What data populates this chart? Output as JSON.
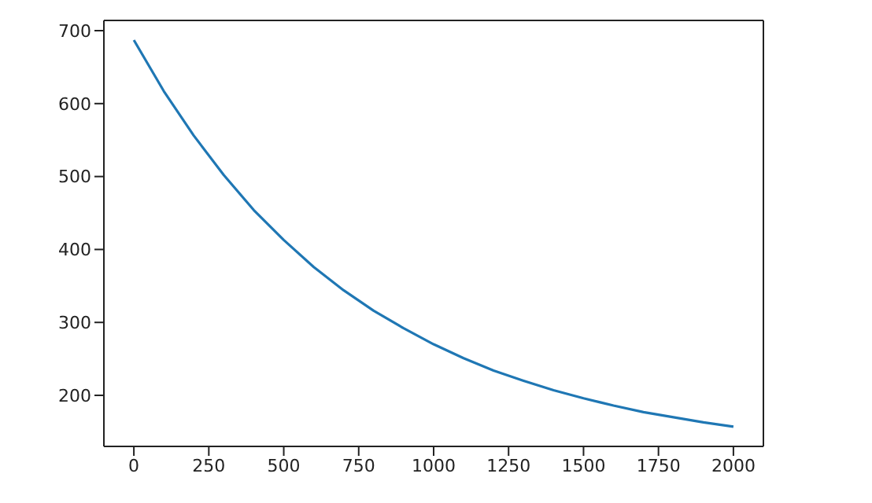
{
  "chart_data": {
    "type": "line",
    "x": [
      0,
      100,
      200,
      300,
      400,
      500,
      600,
      700,
      800,
      900,
      1000,
      1100,
      1200,
      1300,
      1400,
      1500,
      1600,
      1700,
      1800,
      1900,
      2000
    ],
    "series": [
      {
        "color": "#1f77b4",
        "values": [
          687,
          617,
          556,
          502,
          454,
          413,
          376,
          344,
          316,
          292,
          270,
          251,
          234,
          220,
          207,
          196,
          186,
          177,
          170,
          163,
          157
        ]
      }
    ],
    "xlim": [
      -100,
      2100
    ],
    "xticks": [
      0,
      250,
      500,
      750,
      1000,
      1250,
      1500,
      1750,
      2000
    ],
    "ylim": [
      130,
      714
    ],
    "yticks": [
      200,
      300,
      400,
      500,
      600,
      700
    ],
    "grid": false,
    "legend": false,
    "marker": "none",
    "line_style": "solid"
  }
}
